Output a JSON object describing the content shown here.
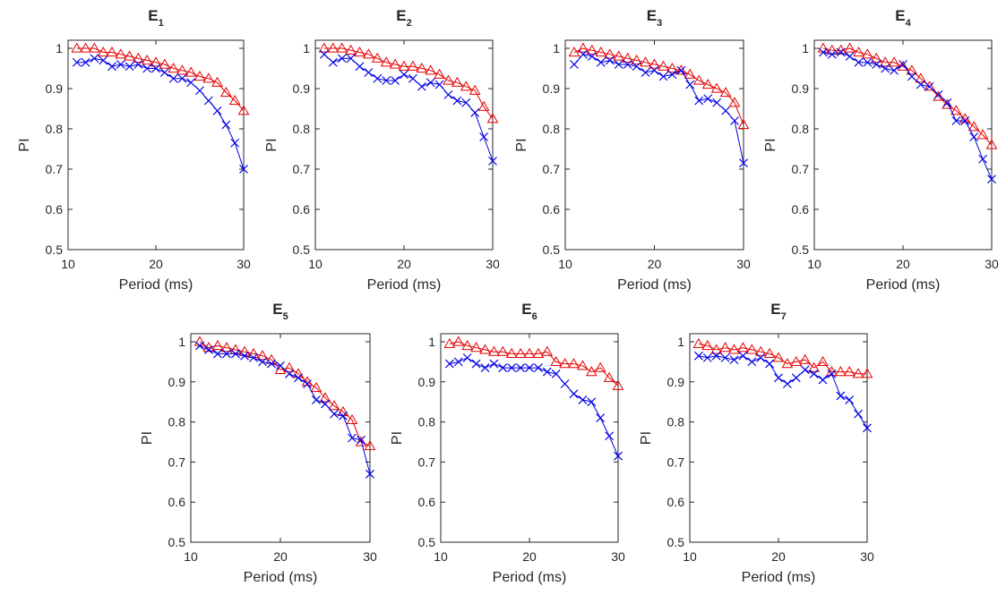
{
  "chart_data": [
    {
      "type": "line",
      "title": "E",
      "title_sub": "1",
      "xlabel": "Period (ms)",
      "ylabel": "PI",
      "xlim": [
        10,
        30
      ],
      "ylim": [
        0.5,
        1.02
      ],
      "xticks": [
        "10",
        "20",
        "30"
      ],
      "yticks": [
        "0.5",
        "0.6",
        "0.7",
        "0.8",
        "0.9",
        "1"
      ],
      "grid": false,
      "x": [
        11,
        12,
        13,
        14,
        15,
        16,
        17,
        18,
        19,
        20,
        21,
        22,
        23,
        24,
        25,
        26,
        27,
        28,
        29,
        30
      ],
      "series": [
        {
          "marker": "triangle",
          "color": "#e60000",
          "values": [
            1.0,
            1.0,
            1.0,
            0.99,
            0.99,
            0.985,
            0.98,
            0.975,
            0.97,
            0.965,
            0.96,
            0.95,
            0.945,
            0.94,
            0.93,
            0.925,
            0.915,
            0.89,
            0.87,
            0.845
          ]
        },
        {
          "marker": "x",
          "color": "#0000e6",
          "values": [
            0.965,
            0.965,
            0.975,
            0.97,
            0.955,
            0.96,
            0.955,
            0.96,
            0.95,
            0.95,
            0.94,
            0.925,
            0.925,
            0.915,
            0.895,
            0.87,
            0.845,
            0.81,
            0.765,
            0.7
          ]
        }
      ]
    },
    {
      "type": "line",
      "title": "E",
      "title_sub": "2",
      "xlabel": "Period (ms)",
      "ylabel": "PI",
      "xlim": [
        10,
        30
      ],
      "ylim": [
        0.5,
        1.02
      ],
      "xticks": [
        "10",
        "20",
        "30"
      ],
      "yticks": [
        "0.5",
        "0.6",
        "0.7",
        "0.8",
        "0.9",
        "1"
      ],
      "grid": false,
      "x": [
        11,
        12,
        13,
        14,
        15,
        16,
        17,
        18,
        19,
        20,
        21,
        22,
        23,
        24,
        25,
        26,
        27,
        28,
        29,
        30
      ],
      "series": [
        {
          "marker": "triangle",
          "color": "#e60000",
          "values": [
            1.0,
            1.0,
            1.0,
            0.995,
            0.99,
            0.985,
            0.975,
            0.965,
            0.96,
            0.955,
            0.955,
            0.95,
            0.945,
            0.935,
            0.92,
            0.915,
            0.905,
            0.895,
            0.855,
            0.825
          ]
        },
        {
          "marker": "x",
          "color": "#0000e6",
          "values": [
            0.985,
            0.965,
            0.975,
            0.975,
            0.955,
            0.94,
            0.925,
            0.92,
            0.92,
            0.935,
            0.925,
            0.905,
            0.915,
            0.91,
            0.885,
            0.87,
            0.865,
            0.84,
            0.78,
            0.72
          ]
        }
      ]
    },
    {
      "type": "line",
      "title": "E",
      "title_sub": "3",
      "xlabel": "Period (ms)",
      "ylabel": "PI",
      "xlim": [
        10,
        30
      ],
      "ylim": [
        0.5,
        1.02
      ],
      "xticks": [
        "10",
        "20",
        "30"
      ],
      "yticks": [
        "0.5",
        "0.6",
        "0.7",
        "0.8",
        "0.9",
        "1"
      ],
      "grid": false,
      "x": [
        11,
        12,
        13,
        14,
        15,
        16,
        17,
        18,
        19,
        20,
        21,
        22,
        23,
        24,
        25,
        26,
        27,
        28,
        29,
        30
      ],
      "series": [
        {
          "marker": "triangle",
          "color": "#e60000",
          "values": [
            0.99,
            1.0,
            0.995,
            0.99,
            0.985,
            0.98,
            0.975,
            0.97,
            0.965,
            0.96,
            0.955,
            0.95,
            0.945,
            0.935,
            0.92,
            0.91,
            0.9,
            0.89,
            0.865,
            0.81
          ]
        },
        {
          "marker": "x",
          "color": "#0000e6",
          "values": [
            0.96,
            0.985,
            0.98,
            0.965,
            0.97,
            0.96,
            0.96,
            0.955,
            0.94,
            0.945,
            0.93,
            0.935,
            0.945,
            0.91,
            0.87,
            0.875,
            0.865,
            0.845,
            0.82,
            0.715
          ]
        }
      ]
    },
    {
      "type": "line",
      "title": "E",
      "title_sub": "4",
      "xlabel": "Period (ms)",
      "ylabel": "PI",
      "xlim": [
        10,
        30
      ],
      "ylim": [
        0.5,
        1.02
      ],
      "xticks": [
        "10",
        "20",
        "30"
      ],
      "yticks": [
        "0.5",
        "0.6",
        "0.7",
        "0.8",
        "0.9",
        "1"
      ],
      "grid": false,
      "x": [
        11,
        12,
        13,
        14,
        15,
        16,
        17,
        18,
        19,
        20,
        21,
        22,
        23,
        24,
        25,
        26,
        27,
        28,
        29,
        30
      ],
      "series": [
        {
          "marker": "triangle",
          "color": "#e60000",
          "values": [
            1.0,
            0.995,
            0.995,
            1.0,
            0.99,
            0.985,
            0.975,
            0.965,
            0.965,
            0.955,
            0.945,
            0.925,
            0.905,
            0.88,
            0.86,
            0.845,
            0.825,
            0.805,
            0.785,
            0.76
          ]
        },
        {
          "marker": "x",
          "color": "#0000e6",
          "values": [
            0.99,
            0.985,
            0.99,
            0.98,
            0.965,
            0.965,
            0.96,
            0.95,
            0.945,
            0.96,
            0.93,
            0.91,
            0.905,
            0.885,
            0.865,
            0.82,
            0.82,
            0.78,
            0.725,
            0.675
          ]
        }
      ]
    },
    {
      "type": "line",
      "title": "E",
      "title_sub": "5",
      "xlabel": "Period (ms)",
      "ylabel": "PI",
      "xlim": [
        10,
        30
      ],
      "ylim": [
        0.5,
        1.02
      ],
      "xticks": [
        "10",
        "20",
        "30"
      ],
      "yticks": [
        "0.5",
        "0.6",
        "0.7",
        "0.8",
        "0.9",
        "1"
      ],
      "grid": false,
      "x": [
        11,
        12,
        13,
        14,
        15,
        16,
        17,
        18,
        19,
        20,
        21,
        22,
        23,
        24,
        25,
        26,
        27,
        28,
        29,
        30
      ],
      "series": [
        {
          "marker": "triangle",
          "color": "#e60000",
          "values": [
            1.0,
            0.985,
            0.99,
            0.985,
            0.98,
            0.975,
            0.97,
            0.965,
            0.955,
            0.93,
            0.935,
            0.92,
            0.9,
            0.885,
            0.86,
            0.84,
            0.825,
            0.805,
            0.75,
            0.74
          ]
        },
        {
          "marker": "x",
          "color": "#0000e6",
          "values": [
            0.99,
            0.98,
            0.97,
            0.97,
            0.97,
            0.965,
            0.96,
            0.95,
            0.945,
            0.94,
            0.92,
            0.91,
            0.895,
            0.855,
            0.845,
            0.82,
            0.815,
            0.76,
            0.755,
            0.67
          ]
        }
      ]
    },
    {
      "type": "line",
      "title": "E",
      "title_sub": "6",
      "xlabel": "Period (ms)",
      "ylabel": "PI",
      "xlim": [
        10,
        30
      ],
      "ylim": [
        0.5,
        1.02
      ],
      "xticks": [
        "10",
        "20",
        "30"
      ],
      "yticks": [
        "0.5",
        "0.6",
        "0.7",
        "0.8",
        "0.9",
        "1"
      ],
      "grid": false,
      "x": [
        11,
        12,
        13,
        14,
        15,
        16,
        17,
        18,
        19,
        20,
        21,
        22,
        23,
        24,
        25,
        26,
        27,
        28,
        29,
        30
      ],
      "series": [
        {
          "marker": "triangle",
          "color": "#e60000",
          "values": [
            0.995,
            1.0,
            0.99,
            0.985,
            0.98,
            0.975,
            0.975,
            0.97,
            0.97,
            0.97,
            0.97,
            0.975,
            0.95,
            0.945,
            0.945,
            0.94,
            0.925,
            0.935,
            0.91,
            0.89
          ]
        },
        {
          "marker": "x",
          "color": "#0000e6",
          "values": [
            0.945,
            0.95,
            0.96,
            0.945,
            0.935,
            0.945,
            0.935,
            0.935,
            0.935,
            0.935,
            0.935,
            0.925,
            0.92,
            0.895,
            0.87,
            0.855,
            0.85,
            0.81,
            0.765,
            0.715
          ]
        }
      ]
    },
    {
      "type": "line",
      "title": "E",
      "title_sub": "7",
      "xlabel": "Period (ms)",
      "ylabel": "PI",
      "xlim": [
        10,
        30
      ],
      "ylim": [
        0.5,
        1.02
      ],
      "xticks": [
        "10",
        "20",
        "30"
      ],
      "yticks": [
        "0.5",
        "0.6",
        "0.7",
        "0.8",
        "0.9",
        "1"
      ],
      "grid": false,
      "x": [
        11,
        12,
        13,
        14,
        15,
        16,
        17,
        18,
        19,
        20,
        21,
        22,
        23,
        24,
        25,
        26,
        27,
        28,
        29,
        30
      ],
      "series": [
        {
          "marker": "triangle",
          "color": "#e60000",
          "values": [
            0.995,
            0.99,
            0.98,
            0.985,
            0.98,
            0.985,
            0.98,
            0.975,
            0.97,
            0.96,
            0.945,
            0.95,
            0.955,
            0.935,
            0.95,
            0.925,
            0.925,
            0.925,
            0.92,
            0.92
          ]
        },
        {
          "marker": "x",
          "color": "#0000e6",
          "values": [
            0.965,
            0.96,
            0.965,
            0.96,
            0.955,
            0.965,
            0.95,
            0.96,
            0.945,
            0.91,
            0.895,
            0.91,
            0.93,
            0.92,
            0.905,
            0.92,
            0.865,
            0.855,
            0.82,
            0.785
          ]
        }
      ]
    }
  ]
}
